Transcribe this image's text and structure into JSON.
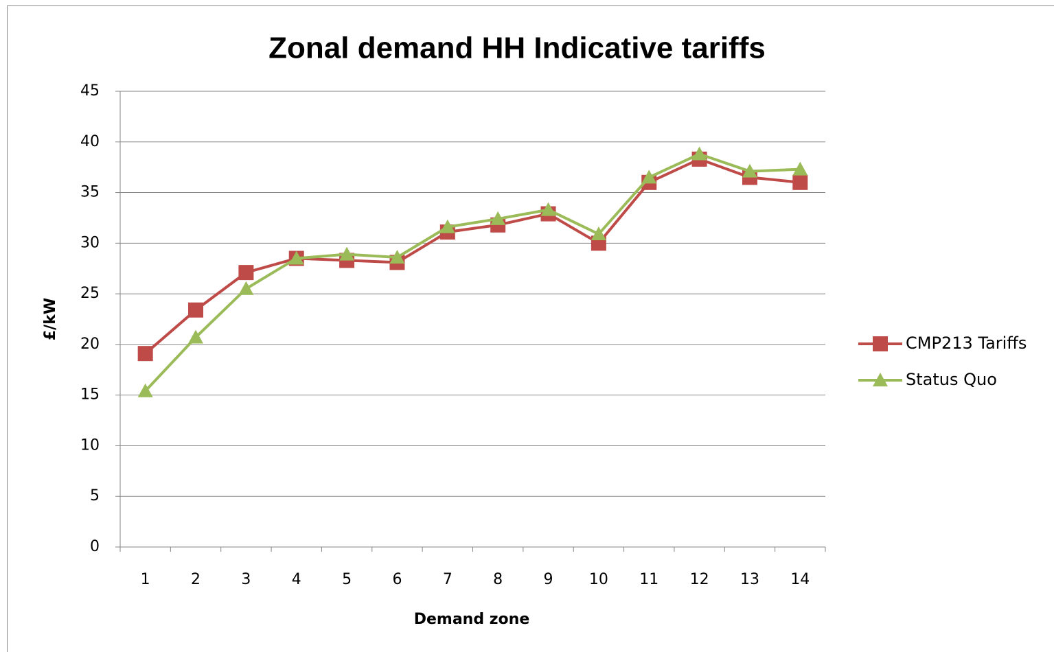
{
  "chart_data": {
    "type": "line",
    "title": "Zonal demand HH Indicative tariffs",
    "x_label": "Demand zone",
    "y_label": "£/kW",
    "categories": [
      "1",
      "2",
      "3",
      "4",
      "5",
      "6",
      "7",
      "8",
      "9",
      "10",
      "11",
      "12",
      "13",
      "14"
    ],
    "series": [
      {
        "name": "CMP213 Tariffs",
        "color": "#be4b48",
        "marker": "square",
        "values": [
          19.1,
          23.4,
          27.1,
          28.5,
          28.3,
          28.1,
          31.1,
          31.8,
          32.9,
          30.0,
          36.0,
          38.3,
          36.5,
          36.0
        ]
      },
      {
        "name": "Status Quo",
        "color": "#9bbb59",
        "marker": "triangle",
        "values": [
          15.4,
          20.7,
          25.5,
          28.5,
          28.9,
          28.6,
          31.6,
          32.4,
          33.3,
          30.9,
          36.5,
          38.8,
          37.1,
          37.3
        ]
      }
    ],
    "ylim": [
      0,
      45
    ],
    "yticks": [
      0,
      5,
      10,
      15,
      20,
      25,
      30,
      35,
      40,
      45
    ],
    "grid": true,
    "legend": "right"
  }
}
